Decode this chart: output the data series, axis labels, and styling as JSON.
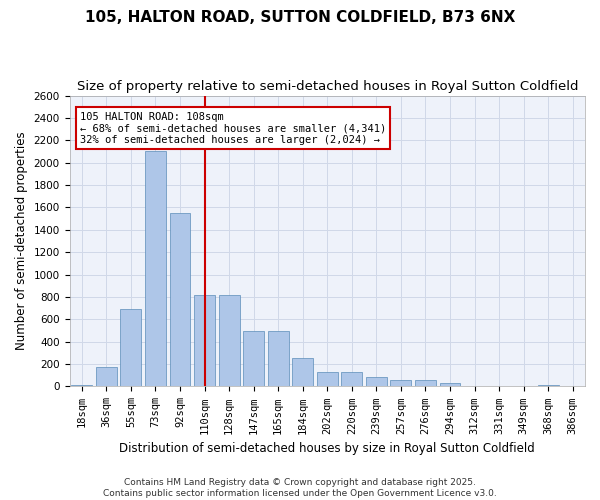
{
  "title": "105, HALTON ROAD, SUTTON COLDFIELD, B73 6NX",
  "subtitle": "Size of property relative to semi-detached houses in Royal Sutton Coldfield",
  "xlabel": "Distribution of semi-detached houses by size in Royal Sutton Coldfield",
  "ylabel": "Number of semi-detached properties",
  "categories": [
    "18sqm",
    "36sqm",
    "55sqm",
    "73sqm",
    "92sqm",
    "110sqm",
    "128sqm",
    "147sqm",
    "165sqm",
    "184sqm",
    "202sqm",
    "220sqm",
    "239sqm",
    "257sqm",
    "276sqm",
    "294sqm",
    "312sqm",
    "331sqm",
    "349sqm",
    "368sqm",
    "386sqm"
  ],
  "values": [
    15,
    175,
    690,
    2100,
    1550,
    820,
    820,
    500,
    500,
    250,
    125,
    125,
    80,
    60,
    55,
    30,
    0,
    0,
    0,
    15,
    0
  ],
  "bar_color": "#aec6e8",
  "bar_edge_color": "#5b8db8",
  "grid_color": "#d0d8e8",
  "bg_color": "#eef2fa",
  "vline_x": 5.0,
  "vline_color": "#cc0000",
  "annotation_text": "105 HALTON ROAD: 108sqm\n← 68% of semi-detached houses are smaller (4,341)\n32% of semi-detached houses are larger (2,024) →",
  "annotation_box_color": "#ffffff",
  "annotation_box_edge": "#cc0000",
  "ylim": [
    0,
    2600
  ],
  "yticks": [
    0,
    200,
    400,
    600,
    800,
    1000,
    1200,
    1400,
    1600,
    1800,
    2000,
    2200,
    2400,
    2600
  ],
  "footnote1": "Contains HM Land Registry data © Crown copyright and database right 2025.",
  "footnote2": "Contains public sector information licensed under the Open Government Licence v3.0.",
  "title_fontsize": 11,
  "subtitle_fontsize": 9.5,
  "xlabel_fontsize": 8.5,
  "ylabel_fontsize": 8.5,
  "tick_fontsize": 7.5,
  "footnote_fontsize": 6.5
}
